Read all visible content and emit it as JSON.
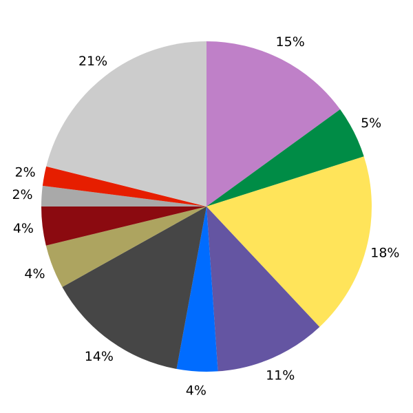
{
  "chart_data": {
    "type": "pie",
    "start_angle": "top, clockwise",
    "legend": "none",
    "slices": [
      {
        "value": 15.0,
        "label": "15%",
        "color": "#bf80c8"
      },
      {
        "value": 5.1,
        "label": "5%",
        "color": "#008c46"
      },
      {
        "value": 17.9,
        "label": "18%",
        "color": "#ffe45a"
      },
      {
        "value": 10.9,
        "label": "11%",
        "color": "#6455a2"
      },
      {
        "value": 4.0,
        "label": "4%",
        "color": "#006cff"
      },
      {
        "value": 14.0,
        "label": "14%",
        "color": "#464646"
      },
      {
        "value": 4.3,
        "label": "4%",
        "color": "#ada460"
      },
      {
        "value": 3.8,
        "label": "4%",
        "color": "#8b0a10"
      },
      {
        "value": 2.0,
        "label": "2%",
        "color": "#a9a9a9"
      },
      {
        "value": 1.9,
        "label": "2%",
        "color": "#e61e00"
      },
      {
        "value": 21.1,
        "label": "21%",
        "color": "#cccccc"
      }
    ]
  }
}
